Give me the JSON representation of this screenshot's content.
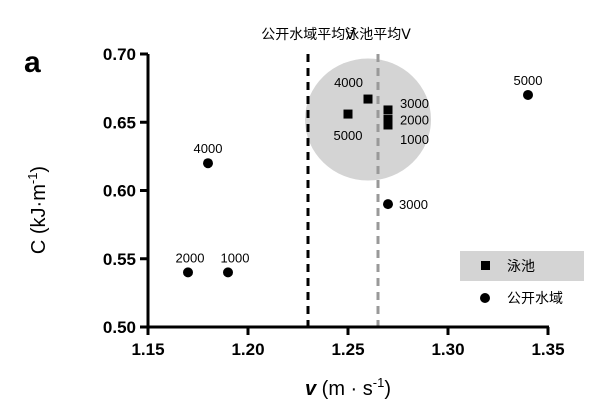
{
  "chart_data": {
    "type": "scatter",
    "panel_label": "a",
    "xlabel": {
      "symbol": "v",
      "unit_prefix": "(m · s",
      "unit_exp": "-1",
      "unit_suffix": ")"
    },
    "ylabel": {
      "prefix": "C (kJ·m",
      "exp": "-1",
      "suffix": ")"
    },
    "xlim": [
      1.15,
      1.35
    ],
    "ylim": [
      0.5,
      0.7
    ],
    "xticks": [
      "1.15",
      "1.20",
      "1.25",
      "1.30",
      "1.35"
    ],
    "yticks": [
      "0.50",
      "0.55",
      "0.60",
      "0.65",
      "0.70"
    ],
    "reference_lines": [
      {
        "x": 1.23,
        "label": "公开水域平均V",
        "color": "#000000",
        "style": "dashed"
      },
      {
        "x": 1.265,
        "label": "泳池平均V",
        "color": "#999999",
        "style": "dashed"
      }
    ],
    "highlight_region": {
      "cx": 1.26,
      "cy": 0.652,
      "color": "#d4d4d4"
    },
    "series": [
      {
        "name": "泳池",
        "marker": "square",
        "points": [
          {
            "x": 1.26,
            "y": 0.667,
            "label": "4000"
          },
          {
            "x": 1.25,
            "y": 0.656,
            "label": "5000"
          },
          {
            "x": 1.27,
            "y": 0.659,
            "label": "3000"
          },
          {
            "x": 1.27,
            "y": 0.652,
            "label": "2000"
          },
          {
            "x": 1.27,
            "y": 0.648,
            "label": "1000"
          }
        ]
      },
      {
        "name": "公开水域",
        "marker": "circle",
        "points": [
          {
            "x": 1.34,
            "y": 0.67,
            "label": "5000"
          },
          {
            "x": 1.18,
            "y": 0.62,
            "label": "4000"
          },
          {
            "x": 1.27,
            "y": 0.59,
            "label": "3000"
          },
          {
            "x": 1.17,
            "y": 0.54,
            "label": "2000"
          },
          {
            "x": 1.19,
            "y": 0.54,
            "label": "1000"
          }
        ]
      }
    ],
    "legend": {
      "position": "bottom-right",
      "highlight_color": "#d4d4d4"
    }
  }
}
